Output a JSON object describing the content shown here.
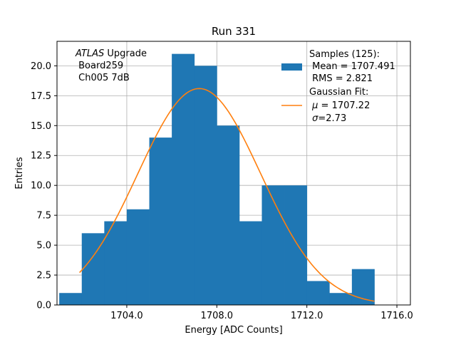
{
  "chart_data": {
    "type": "bar",
    "title": "Run 331",
    "xlabel": "Energy [ADC Counts]",
    "ylabel": "Entries",
    "xlim": [
      1700.9,
      1716.6
    ],
    "ylim": [
      0,
      22.05
    ],
    "grid": true,
    "x_ticks": [
      1704,
      1708,
      1712,
      1716
    ],
    "x_tick_labels": [
      "1704.0",
      "1708.0",
      "1712.0",
      "1716.0"
    ],
    "y_ticks": [
      0,
      2.5,
      5,
      7.5,
      10,
      12.5,
      15,
      17.5,
      20
    ],
    "y_tick_labels": [
      "0.0",
      "2.5",
      "5.0",
      "7.5",
      "10.0",
      "12.5",
      "15.0",
      "17.5",
      "20.0"
    ],
    "histogram": {
      "bin_edges": [
        1701,
        1702,
        1703,
        1704,
        1705,
        1706,
        1707,
        1708,
        1709,
        1710,
        1711,
        1712,
        1713,
        1714,
        1715
      ],
      "counts": [
        1,
        6,
        7,
        8,
        14,
        21,
        20,
        15,
        7,
        10,
        10,
        2,
        1,
        3
      ],
      "color": "#1f77b4"
    },
    "fit": {
      "type": "gaussian",
      "mu": 1707.22,
      "sigma": 2.73,
      "amplitude": 18.1,
      "x_range": [
        1701.9,
        1715
      ],
      "color": "#ff7f0e"
    },
    "annotation": {
      "italic_part": "ATLAS",
      "line1_rest": " Upgrade",
      "line2": " Board259",
      "line3": " Ch005 7dB"
    },
    "legend": {
      "placement": "top-right",
      "hist_lines": [
        "Samples (125):",
        " Mean = 1707.491",
        " RMS = 2.821"
      ],
      "fit_line1": "Gaussian Fit:",
      "fit_mu_symbol": "μ",
      "fit_mu_rest": " = 1707.22",
      "fit_sigma_symbol": "σ",
      "fit_sigma_rest": "=2.73"
    }
  }
}
